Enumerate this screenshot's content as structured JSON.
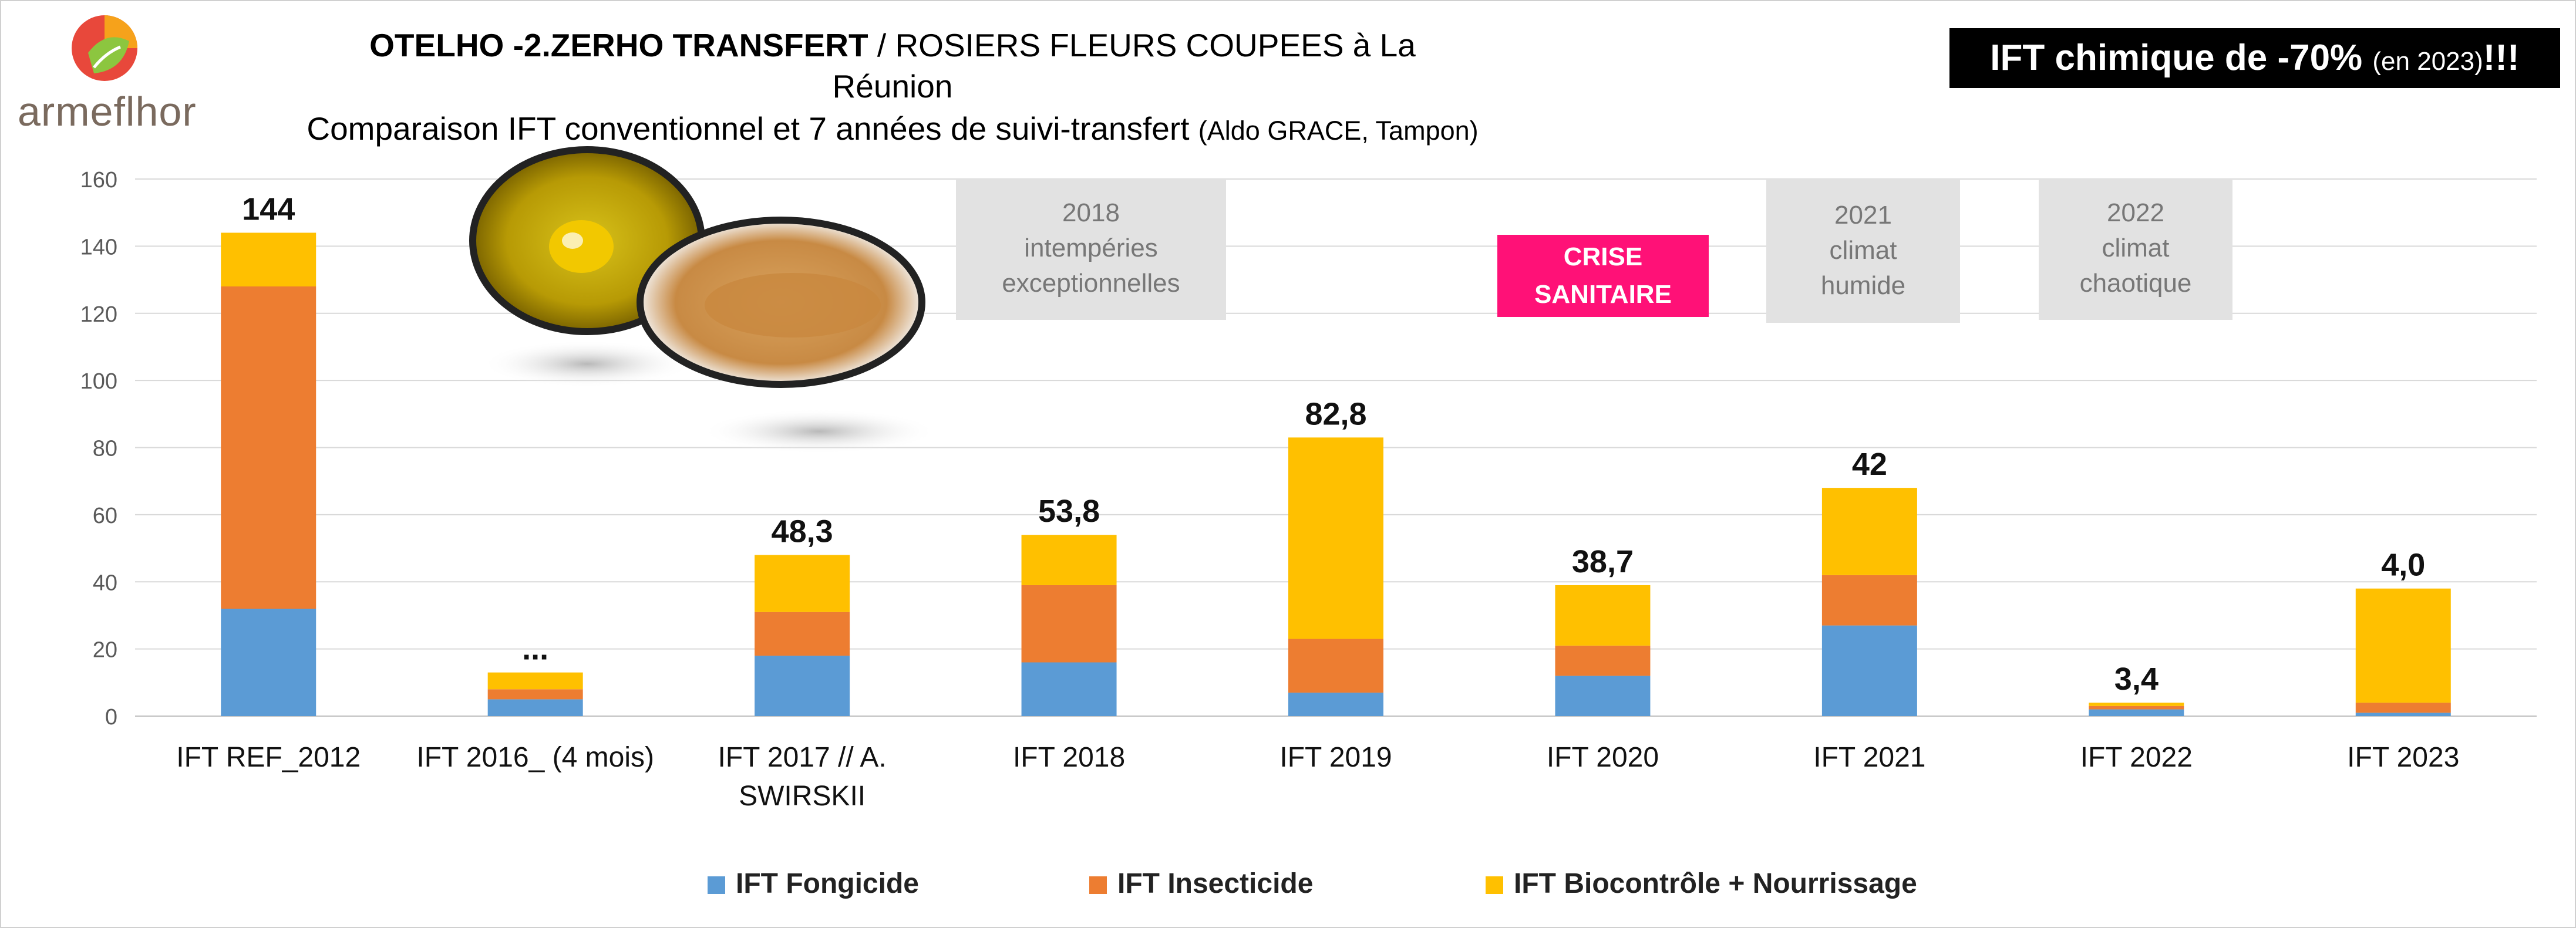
{
  "header": {
    "title_bold": "OTELHO -2.ZERHO TRANSFERT",
    "title_rest": " / ROSIERS FLEURS COUPEES à La Réunion",
    "subtitle_main": "Comparaison IFT conventionnel et 7 années de suivi-transfert ",
    "subtitle_small": "(Aldo GRACE, Tampon)",
    "badge_main": "IFT chimique de -70% ",
    "badge_small": "(en 2023)",
    "badge_end": "!!!",
    "logo_text": "armeflhor"
  },
  "annotations": [
    {
      "lines": [
        "2018",
        "intempéries",
        "exceptionnelles"
      ]
    },
    {
      "lines": [
        "2021",
        "climat",
        "humide"
      ]
    },
    {
      "lines": [
        "2022",
        "climat",
        "chaotique"
      ]
    }
  ],
  "crise": {
    "lines": [
      "CRISE",
      "SANITAIRE"
    ],
    "color": "#ff1177"
  },
  "chart_data": {
    "type": "bar",
    "stacked": true,
    "categories": [
      "IFT  REF_2012",
      "IFT 2016_ (4 mois)",
      "IFT 2017 // A. SWIRSKII",
      "IFT 2018",
      "IFT 2019",
      "IFT 2020",
      "IFT 2021",
      "IFT 2022",
      "IFT 2023"
    ],
    "series": [
      {
        "name": "IFT Fongicide",
        "color": "#5b9bd5",
        "values": [
          32,
          5,
          18,
          16,
          7,
          12,
          27,
          2,
          1
        ]
      },
      {
        "name": "IFT Insecticide",
        "color": "#ed7d31",
        "values": [
          96,
          3,
          13,
          23,
          16,
          9,
          15,
          1,
          3
        ]
      },
      {
        "name": "IFT Biocontrôle + Nourrissage",
        "color": "#ffc000",
        "values": [
          16,
          5,
          17,
          15,
          60,
          18,
          26,
          1,
          34
        ]
      }
    ],
    "data_labels": [
      "144",
      "...",
      "48,3",
      "53,8",
      "82,8",
      "38,7",
      "42",
      "3,4",
      "4,0"
    ],
    "ylim": [
      0,
      160
    ],
    "yticks": [
      0,
      20,
      40,
      60,
      80,
      100,
      120,
      140,
      160
    ],
    "grid": true,
    "legend": "bottom"
  }
}
